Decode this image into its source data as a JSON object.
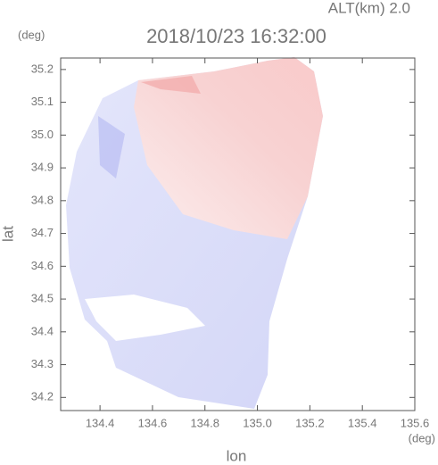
{
  "chart_data": {
    "type": "radar",
    "title": "2018/10/23 16:32:00",
    "subtitle": "ALT(km) 2.0",
    "y_unit": "(deg)",
    "x_unit": "(deg)",
    "xlabel": "lon",
    "ylabel": "lat",
    "xlim": [
      134.25,
      135.6
    ],
    "ylim": [
      34.16,
      35.235
    ],
    "xticks": [
      134.4,
      134.6,
      134.8,
      {
        "value": 135.0,
        "label": "135.0"
      },
      135.2,
      135.4,
      135.6
    ],
    "yticks": [
      34.2,
      34.3,
      34.4,
      34.5,
      34.6,
      34.7,
      34.8,
      34.9,
      {
        "value": 35.0,
        "label": "35.0"
      },
      35.1,
      35.2
    ]
  }
}
